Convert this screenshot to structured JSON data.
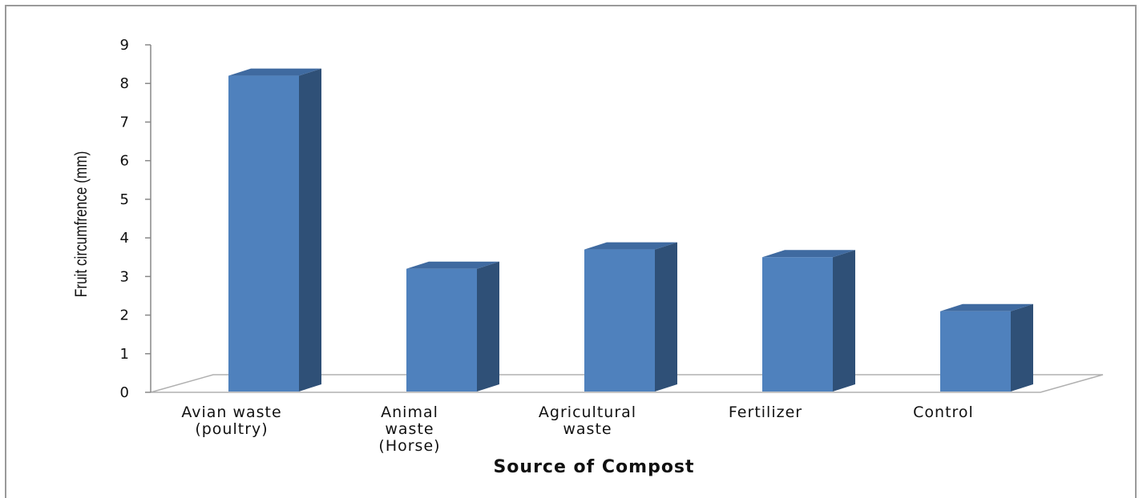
{
  "chart_data": {
    "type": "bar",
    "style": "3d-column",
    "categories": [
      [
        "Avian waste",
        "(poultry)"
      ],
      [
        "Animal",
        "waste",
        "(Horse)"
      ],
      [
        "Agricultural",
        "waste"
      ],
      [
        "Fertilizer"
      ],
      [
        "Control"
      ]
    ],
    "values": [
      8.2,
      3.2,
      3.7,
      3.5,
      2.1
    ],
    "xlabel": "Source of Compost",
    "ylabel": "Fruit circumfrence (mm)",
    "ylim": [
      0,
      9
    ],
    "yticks": [
      "0",
      "1",
      "2",
      "3",
      "4",
      "5",
      "6",
      "7",
      "8",
      "9"
    ],
    "grid": false,
    "legend": "none",
    "colors": {
      "bar_front": "#4f81bd",
      "bar_side": "#2f5077",
      "bar_top": "#3f6aa0",
      "floor_line": "#b0b0b0",
      "axis": "#888888"
    }
  }
}
